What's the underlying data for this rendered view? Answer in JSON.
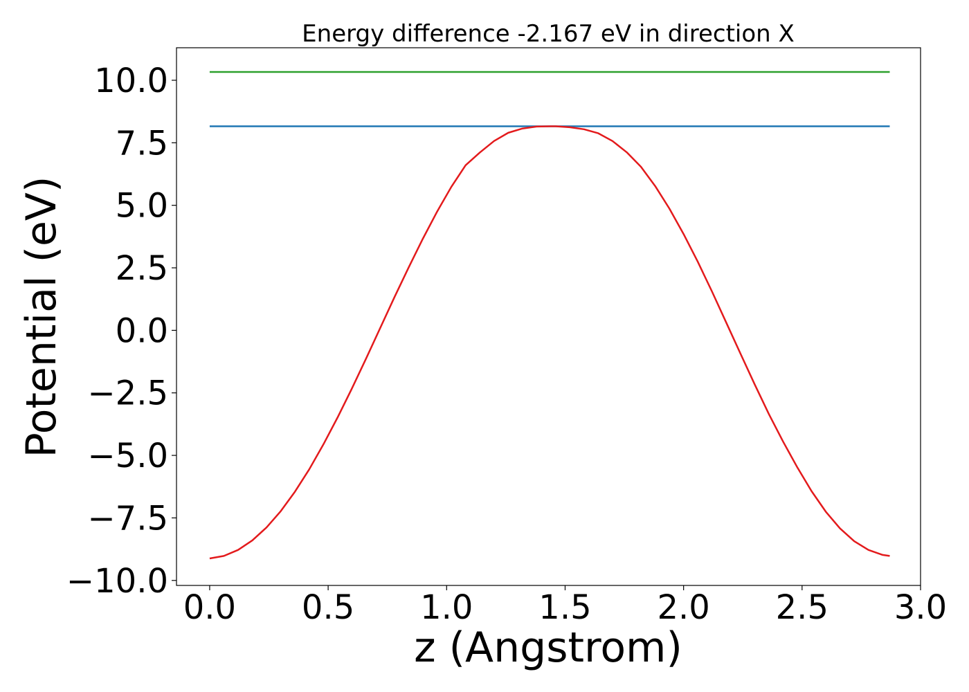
{
  "chart_data": {
    "type": "line",
    "title": "Energy difference -2.167 eV in direction X",
    "xlabel": "z (Angstrom)",
    "ylabel": "Potential (eV)",
    "xlim": [
      -0.14,
      3.0
    ],
    "ylim": [
      -10.2,
      11.3
    ],
    "xticks": [
      0.0,
      0.5,
      1.0,
      1.5,
      2.0,
      2.5,
      3.0
    ],
    "xtick_labels": [
      "0.0",
      "0.5",
      "1.0",
      "1.5",
      "2.0",
      "2.5",
      "3.0"
    ],
    "yticks": [
      -10.0,
      -7.5,
      -5.0,
      -2.5,
      0.0,
      2.5,
      5.0,
      7.5,
      10.0
    ],
    "ytick_labels": [
      "−10.0",
      "−7.5",
      "−5.0",
      "−2.5",
      "0.0",
      "2.5",
      "5.0",
      "7.5",
      "10.0"
    ],
    "grid": false,
    "legend": false,
    "series": [
      {
        "color": "#2ca02c",
        "x": [
          0.0,
          2.87
        ],
        "y": [
          10.33,
          10.33
        ]
      },
      {
        "color": "#1f77b4",
        "x": [
          0.0,
          2.87
        ],
        "y": [
          8.16,
          8.16
        ]
      },
      {
        "color": "#e31a1c",
        "x": [
          0.0,
          0.06,
          0.12,
          0.18,
          0.24,
          0.3,
          0.36,
          0.42,
          0.48,
          0.54,
          0.6,
          0.66,
          0.72,
          0.78,
          0.84,
          0.9,
          0.96,
          1.02,
          1.08,
          1.14,
          1.2,
          1.26,
          1.32,
          1.38,
          1.44,
          1.46,
          1.52,
          1.58,
          1.64,
          1.7,
          1.76,
          1.82,
          1.88,
          1.94,
          2.0,
          2.06,
          2.12,
          2.18,
          2.24,
          2.3,
          2.36,
          2.42,
          2.48,
          2.54,
          2.6,
          2.66,
          2.72,
          2.78,
          2.84,
          2.87
        ],
        "y": [
          -9.12,
          -9.02,
          -8.78,
          -8.4,
          -7.88,
          -7.23,
          -6.45,
          -5.56,
          -4.56,
          -3.48,
          -2.33,
          -1.13,
          0.1,
          1.33,
          2.52,
          3.67,
          4.75,
          5.74,
          6.6,
          7.11,
          7.57,
          7.9,
          8.07,
          8.15,
          8.16,
          8.16,
          8.12,
          8.04,
          7.88,
          7.57,
          7.12,
          6.54,
          5.77,
          4.87,
          3.85,
          2.74,
          1.55,
          0.31,
          -0.93,
          -2.16,
          -3.35,
          -4.45,
          -5.48,
          -6.43,
          -7.25,
          -7.92,
          -8.43,
          -8.78,
          -8.98,
          -9.02
        ]
      }
    ]
  }
}
